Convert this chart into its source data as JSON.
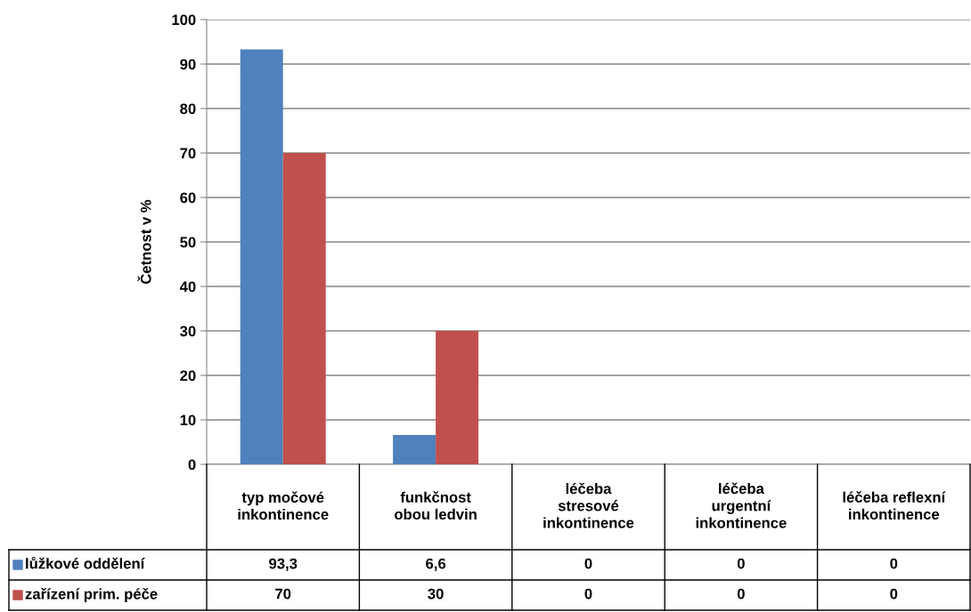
{
  "chart_data": {
    "type": "bar",
    "ylabel": "Četnost v %",
    "categories": [
      "typ močové inkontinence",
      "funkčnost obou ledvin",
      "léčeba stresové inkontinence",
      "léčeba urgentní inkontinence",
      "léčeba reflexní inkontinence"
    ],
    "series": [
      {
        "name": "lůžkové oddělení",
        "color": "#4f81bd",
        "values": [
          93.3,
          6.6,
          0,
          0,
          0
        ],
        "value_labels": [
          "93,3",
          "6,6",
          "0",
          "0",
          "0"
        ]
      },
      {
        "name": "zařízení prim. péče",
        "color": "#c0504d",
        "values": [
          70,
          30,
          0,
          0,
          0
        ],
        "value_labels": [
          "70",
          "30",
          "0",
          "0",
          "0"
        ]
      }
    ],
    "ylim": [
      0,
      100
    ],
    "yticks": [
      0,
      10,
      20,
      30,
      40,
      50,
      60,
      70,
      80,
      90,
      100
    ],
    "grid": "y",
    "legend": "bottom"
  }
}
